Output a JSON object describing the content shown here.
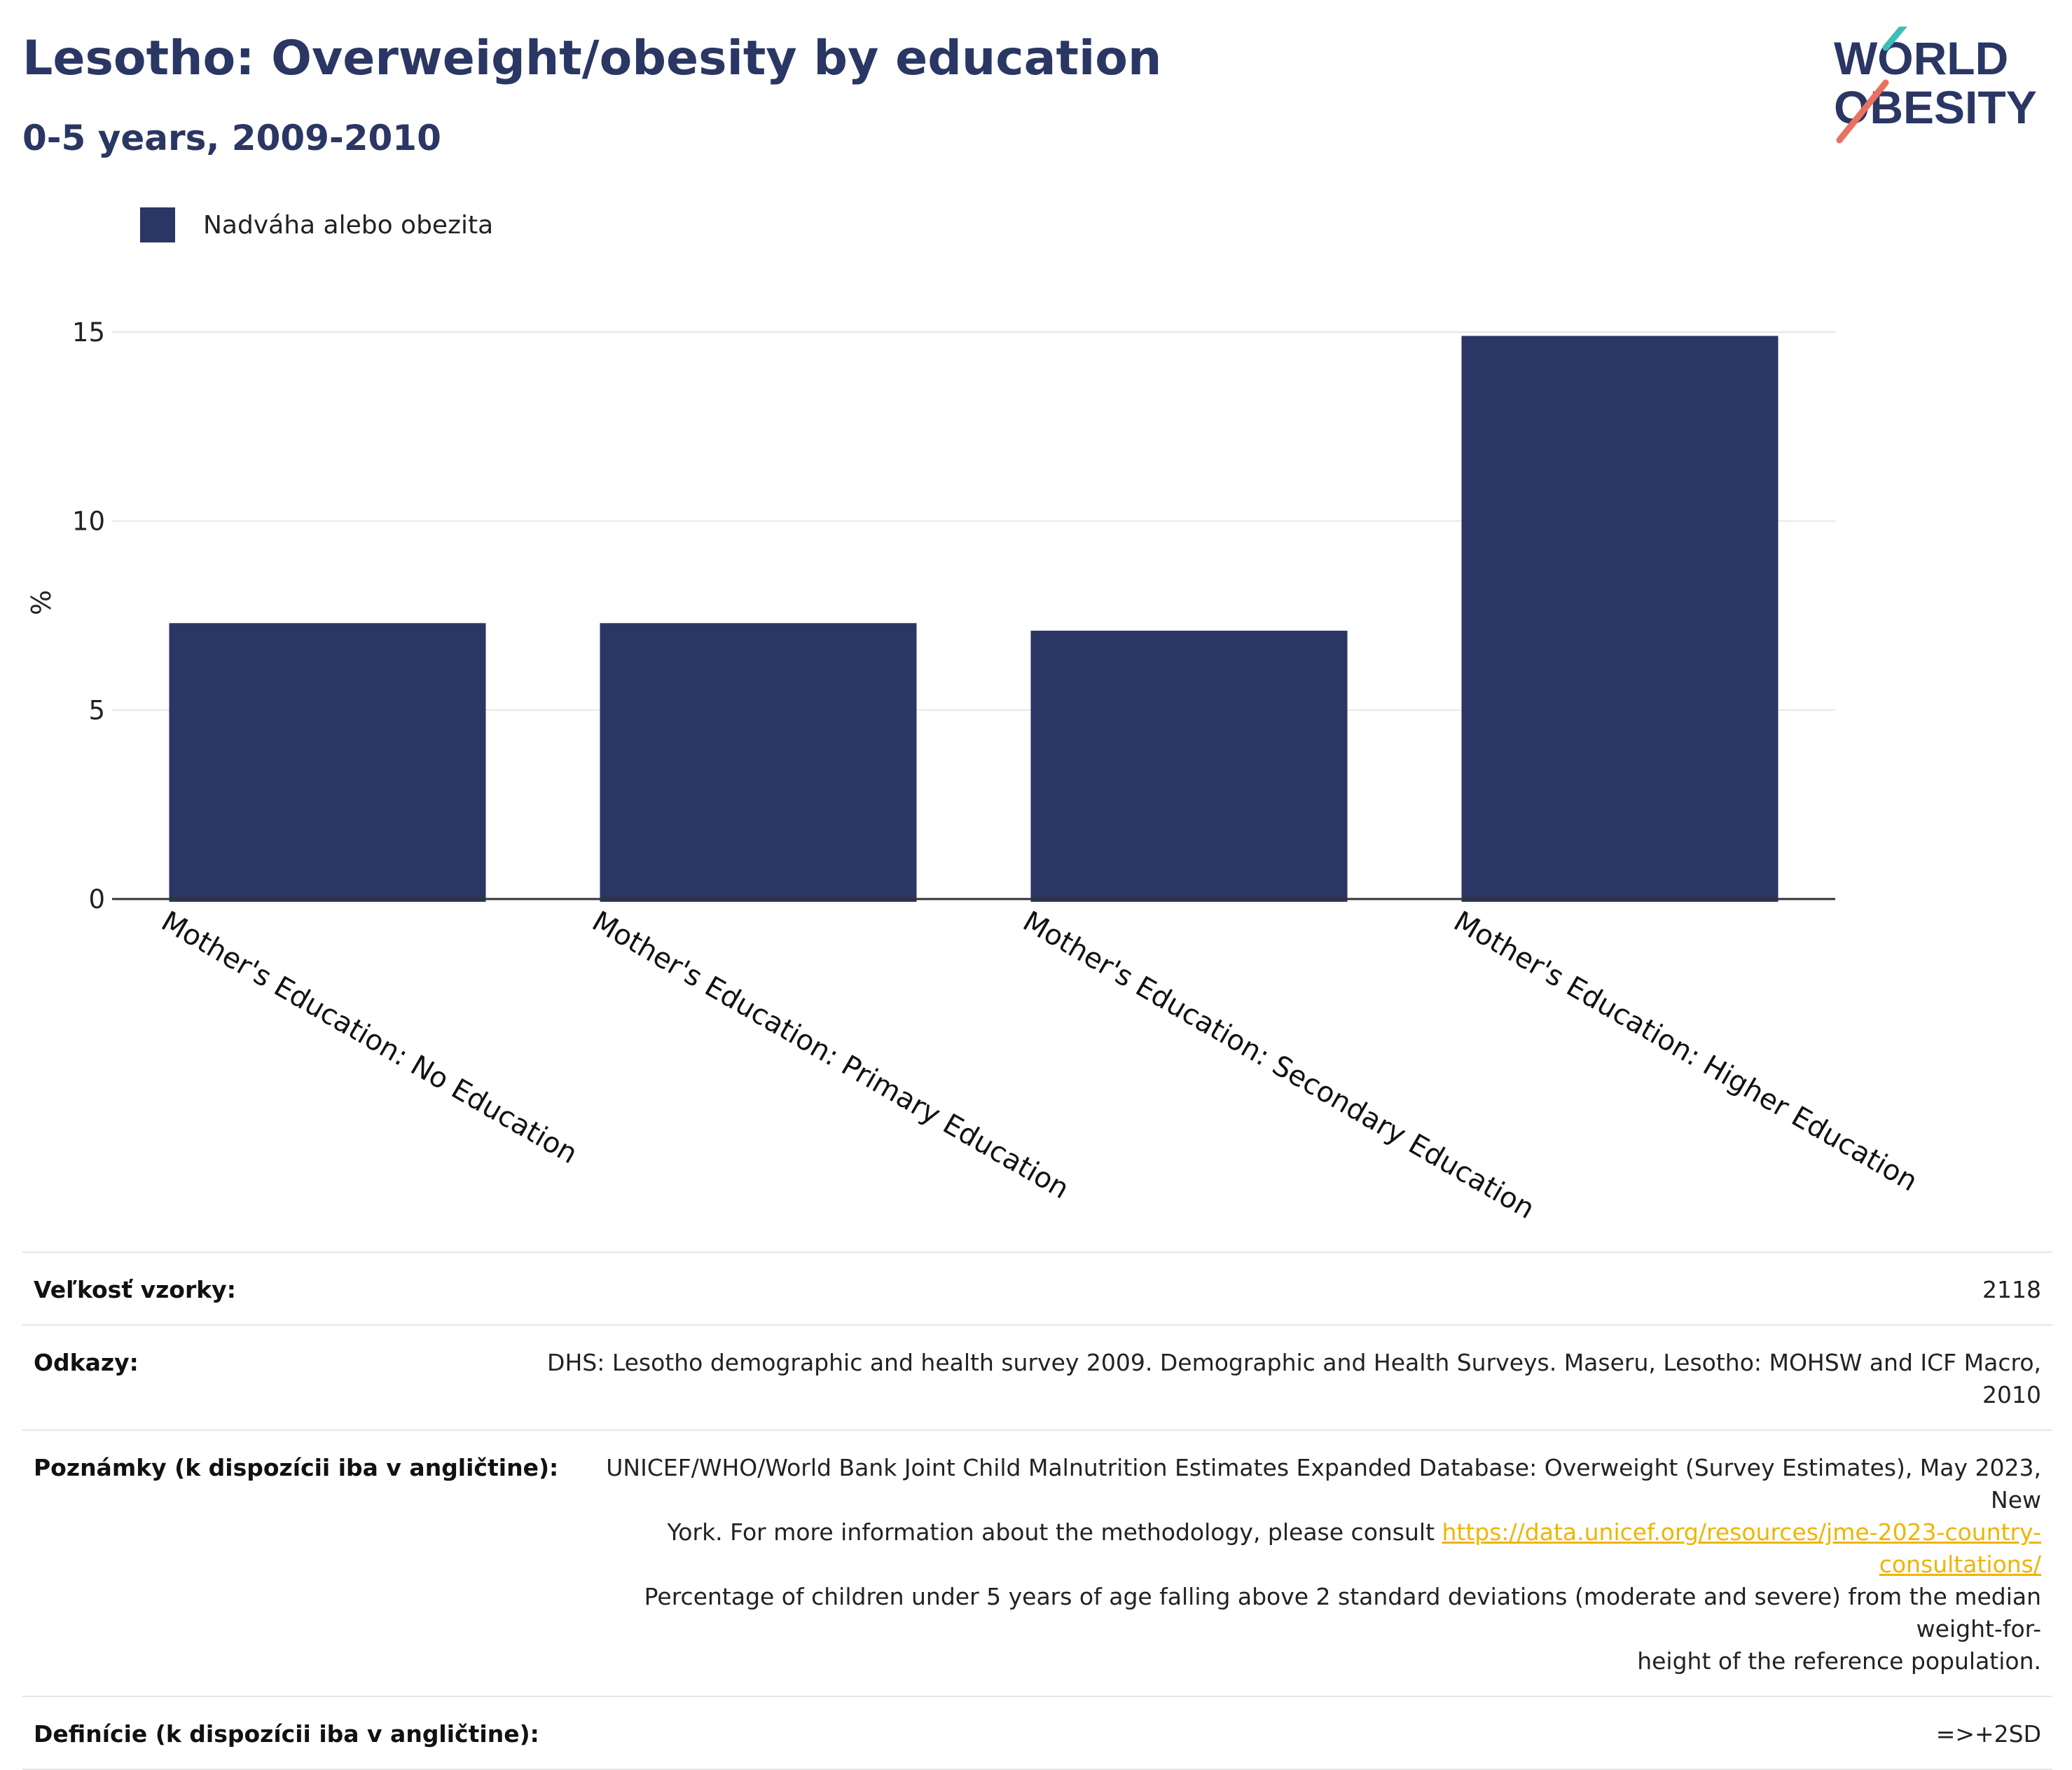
{
  "header": {
    "title": "Lesotho: Overweight/obesity by education",
    "subtitle": "0-5 years, 2009-2010"
  },
  "logo": {
    "line1": "WORLD",
    "line2": "OBESITY",
    "colors": {
      "text": "#2a3663",
      "slash_top": "#3bbfb8",
      "slash_bottom": "#e8715f"
    }
  },
  "colors": {
    "bar": "#2a3663",
    "grid": "#e6e6e6",
    "axis": "#333333",
    "link": "#f0b400"
  },
  "legend": {
    "label": "Nadváha alebo obezita"
  },
  "chart_data": {
    "type": "bar",
    "categories": [
      "Mother's Education: No Education",
      "Mother's Education: Primary Education",
      "Mother's Education: Secondary Education",
      "Mother's Education: Higher Education"
    ],
    "series": [
      {
        "name": "Nadváha alebo obezita",
        "values": [
          7.3,
          7.3,
          7.1,
          14.9
        ]
      }
    ],
    "ylabel": "%",
    "ylim": [
      0,
      15
    ],
    "yticks": [
      0,
      5,
      10,
      15
    ],
    "grid": true,
    "legend_position": "top-left"
  },
  "meta": {
    "sample_size": {
      "label": "Veľkosť vzorky:",
      "value": "2118"
    },
    "references": {
      "label": "Odkazy:",
      "value": "DHS: Lesotho demographic and health survey 2009. Demographic and Health Surveys. Maseru, Lesotho: MOHSW and ICF Macro, 2010"
    },
    "notes": {
      "label": "Poznámky (k dispozícii iba v angličtine):",
      "line1": "UNICEF/WHO/World Bank Joint Child Malnutrition Estimates Expanded Database: Overweight (Survey Estimates), May 2023, New",
      "line2_prefix": "York. For more information about the methodology, please consult ",
      "link": "https://data.unicef.org/resources/jme-2023-country-consultations/",
      "line3": "Percentage of children under 5 years of age falling above 2 standard deviations (moderate and severe) from the median weight-for-",
      "line4": "height of the reference population."
    },
    "definitions": {
      "label": "Definície (k dispozícii iba v angličtine):",
      "value": "=>+2SD"
    }
  }
}
